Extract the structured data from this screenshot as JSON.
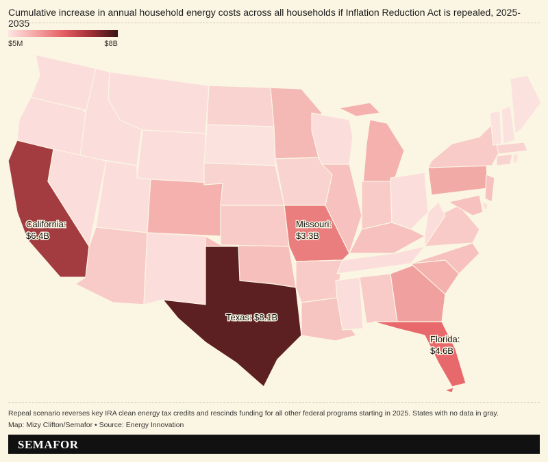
{
  "title": "Cumulative increase in annual household energy costs across all households if Inflation Reduction Act is repealed, 2025-2035",
  "legend": {
    "min_label": "$5M",
    "max_label": "$8B",
    "colors": [
      "#fde5e3",
      "#3a1516"
    ]
  },
  "colors": {
    "background": "#fbf5e3",
    "border": "#fbf5e3",
    "low": "#fbdedb",
    "mid": "#f4b1ae",
    "high": "#e8696b",
    "veryhigh": "#a33c40",
    "max": "#5c2022"
  },
  "states": [
    {
      "id": "WA",
      "color": "#fbdedb"
    },
    {
      "id": "OR",
      "color": "#fbdedb"
    },
    {
      "id": "CA",
      "color": "#a33c40"
    },
    {
      "id": "ID",
      "color": "#fbdedb"
    },
    {
      "id": "NV",
      "color": "#fbdedb"
    },
    {
      "id": "MT",
      "color": "#fbdedb"
    },
    {
      "id": "WY",
      "color": "#fbdedb"
    },
    {
      "id": "UT",
      "color": "#fbdedb"
    },
    {
      "id": "AZ",
      "color": "#f8cbc8"
    },
    {
      "id": "CO",
      "color": "#f4b1ae"
    },
    {
      "id": "NM",
      "color": "#fbdedb"
    },
    {
      "id": "ND",
      "color": "#f8d3d0"
    },
    {
      "id": "SD",
      "color": "#fbe2df"
    },
    {
      "id": "NE",
      "color": "#f8d3d0"
    },
    {
      "id": "KS",
      "color": "#f8cbc8"
    },
    {
      "id": "OK",
      "color": "#f6bfbc"
    },
    {
      "id": "TX",
      "color": "#5c2022"
    },
    {
      "id": "MN",
      "color": "#f4b8b5"
    },
    {
      "id": "IA",
      "color": "#f8d3d0"
    },
    {
      "id": "MO",
      "color": "#ea7e7f"
    },
    {
      "id": "AR",
      "color": "#f8cbc8"
    },
    {
      "id": "LA",
      "color": "#f6c4c1"
    },
    {
      "id": "WI",
      "color": "#fbdedb"
    },
    {
      "id": "IL",
      "color": "#f6c1be"
    },
    {
      "id": "MI",
      "color": "#f4b1ae"
    },
    {
      "id": "IN",
      "color": "#f8cbc8"
    },
    {
      "id": "OH",
      "color": "#fbdedb"
    },
    {
      "id": "KY",
      "color": "#f6c1be"
    },
    {
      "id": "TN",
      "color": "#fbdedb"
    },
    {
      "id": "MS",
      "color": "#fbdedb"
    },
    {
      "id": "AL",
      "color": "#f8cbc8"
    },
    {
      "id": "GA",
      "color": "#f0a09e"
    },
    {
      "id": "FL",
      "color": "#e8696b"
    },
    {
      "id": "SC",
      "color": "#f4b1ae"
    },
    {
      "id": "NC",
      "color": "#f6c1be"
    },
    {
      "id": "VA",
      "color": "#f8cbc8"
    },
    {
      "id": "WV",
      "color": "#fbdedb"
    },
    {
      "id": "PA",
      "color": "#f2aaa7"
    },
    {
      "id": "NY",
      "color": "#f8cbc8"
    },
    {
      "id": "NJ",
      "color": "#f6c1be"
    },
    {
      "id": "DE",
      "color": "#fbdedb"
    },
    {
      "id": "MD",
      "color": "#f6c1be"
    },
    {
      "id": "VT",
      "color": "#fbe2df"
    },
    {
      "id": "NH",
      "color": "#fbe2df"
    },
    {
      "id": "ME",
      "color": "#fbe2df"
    },
    {
      "id": "MA",
      "color": "#f8d3d0"
    },
    {
      "id": "CT",
      "color": "#f8d3d0"
    },
    {
      "id": "RI",
      "color": "#fbe2df"
    }
  ],
  "labels": {
    "california": "California:\n$6.4B",
    "missouri": "Missouri:\n$3.3B",
    "texas": "Texas: $8.1B",
    "florida": "Florida:\n$4.6B"
  },
  "note": "Repeal scenario reverses key IRA clean energy tax credits and rescinds funding for all other federal programs starting in 2025. States with no data in gray.",
  "credit": "Map: Mizy Clifton/Semafor • Source: Energy Innovation",
  "brand": "SEMAFOR"
}
